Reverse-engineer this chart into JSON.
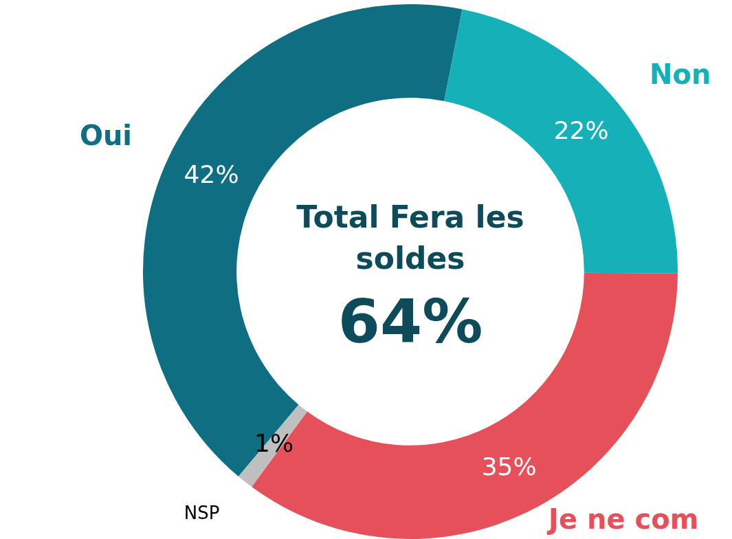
{
  "chart_data": {
    "type": "donut",
    "title": "Total Fera les soldes",
    "categories": [
      "Oui",
      "Non",
      "Je ne com",
      "NSP"
    ],
    "values": [
      42,
      22,
      35,
      1
    ],
    "colors": [
      "#0f6e82",
      "#16b0b8",
      "#e5505a",
      "#bfbfbf"
    ],
    "value_labels": [
      "42%",
      "22%",
      "35%",
      "1%"
    ],
    "annotations": [
      "64%"
    ],
    "legend": false
  }
}
